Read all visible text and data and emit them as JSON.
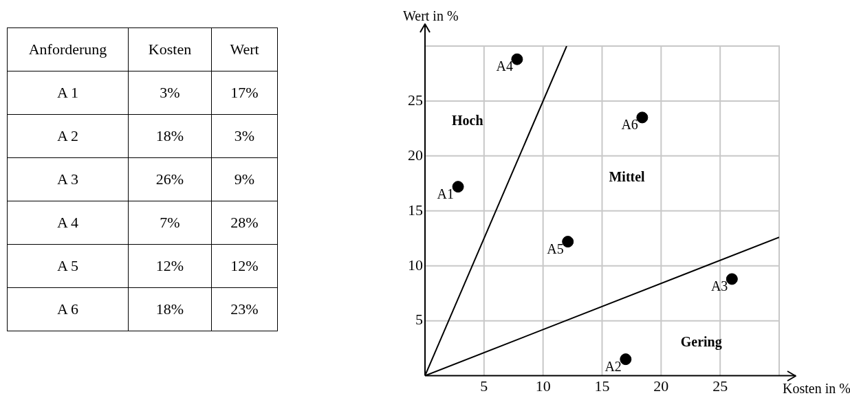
{
  "chart_data": [
    {
      "type": "other",
      "legend_title": "Anforderung",
      "categories": [
        "A 1",
        "A 2",
        "A 3",
        "A 4",
        "A 5",
        "A 6"
      ],
      "series": [
        {
          "name": "Kosten",
          "values": [
            3,
            18,
            26,
            7,
            12,
            18
          ],
          "value_labels": [
            "3%",
            "18%",
            "26%",
            "7%",
            "12%",
            "18%"
          ]
        },
        {
          "name": "Wert",
          "values": [
            17,
            3,
            9,
            28,
            12,
            23
          ],
          "value_labels": [
            "17%",
            "3%",
            "9%",
            "28%",
            "12%",
            "23%"
          ]
        }
      ]
    },
    {
      "type": "scatter",
      "xlabel": "Kosten in %",
      "ylabel": "Wert in %",
      "xlim": [
        0,
        30
      ],
      "ylim": [
        0,
        30
      ],
      "xticks": [
        5,
        10,
        15,
        20,
        25
      ],
      "yticks": [
        5,
        10,
        15,
        20,
        25
      ],
      "grid": true,
      "legend": false,
      "series": [
        {
          "name": "A1",
          "color": "#000000",
          "marker": "circle",
          "x": [
            2.8
          ],
          "values": [
            17.2
          ]
        },
        {
          "name": "A2",
          "color": "#000000",
          "marker": "circle",
          "x": [
            17
          ],
          "values": [
            1.5
          ]
        },
        {
          "name": "A3",
          "color": "#000000",
          "marker": "circle",
          "x": [
            26
          ],
          "values": [
            8.8
          ]
        },
        {
          "name": "A4",
          "color": "#000000",
          "marker": "circle",
          "x": [
            7.8
          ],
          "values": [
            28.8
          ]
        },
        {
          "name": "A5",
          "color": "#000000",
          "marker": "circle",
          "x": [
            12.1
          ],
          "values": [
            12.2
          ]
        },
        {
          "name": "A6",
          "color": "#000000",
          "marker": "circle",
          "x": [
            18.4
          ],
          "values": [
            23.5
          ]
        },
        {
          "type": "line",
          "color": "#000000",
          "marker": "none",
          "x": [
            0,
            12
          ],
          "values": [
            0,
            30
          ]
        },
        {
          "type": "line",
          "color": "#000000",
          "marker": "none",
          "x": [
            0,
            30
          ],
          "values": [
            0,
            12.6
          ]
        }
      ],
      "annotations": [
        "Hoch",
        "Mittel",
        "Gering"
      ]
    }
  ]
}
